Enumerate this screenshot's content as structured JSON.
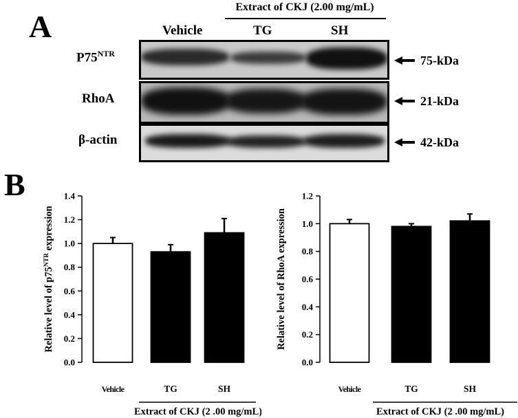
{
  "panelA": {
    "label": "A",
    "extract_label": "Extract of CKJ (2.00 mg/mL)",
    "lanes": [
      "Vehicle",
      "TG",
      "SH"
    ],
    "rows": [
      {
        "name": "P75",
        "sup": "NTR",
        "size": "75-kDa"
      },
      {
        "name": "RhoA",
        "sup": "",
        "size": "21-kDa"
      },
      {
        "name": "β-actin",
        "sup": "",
        "size": "42-kDa"
      }
    ]
  },
  "panelB": {
    "label": "B"
  },
  "chart_data": [
    {
      "type": "bar",
      "categories": [
        "Vehicle",
        "TG",
        "SH"
      ],
      "values": [
        1.0,
        0.93,
        1.09
      ],
      "errors": [
        0.05,
        0.06,
        0.12
      ],
      "colors": [
        "#ffffff",
        "#000000",
        "#000000"
      ],
      "ylabel_pre": "Relative level of p75",
      "ylabel_sup": "NTR",
      "ylabel_post": " expression",
      "ylim": [
        0,
        1.4
      ],
      "yticks": [
        "0.0",
        "0.2",
        "0.4",
        "0.6",
        "0.8",
        "1.0",
        "1.2",
        "1.4"
      ],
      "group_label": "Extract of CKJ (2 .00 mg/mL)"
    },
    {
      "type": "bar",
      "categories": [
        "Vehicle",
        "TG",
        "SH"
      ],
      "values": [
        1.0,
        0.98,
        1.02
      ],
      "errors": [
        0.03,
        0.02,
        0.05
      ],
      "colors": [
        "#ffffff",
        "#000000",
        "#000000"
      ],
      "ylabel_pre": "Relative level of RhoA expression",
      "ylabel_sup": "",
      "ylabel_post": "",
      "ylim": [
        0,
        1.2
      ],
      "yticks": [
        "0.0",
        "0.2",
        "0.4",
        "0.6",
        "0.8",
        "1.0",
        "1.2"
      ],
      "group_label": "Extract of CKJ (2 .00 mg/mL)"
    }
  ]
}
